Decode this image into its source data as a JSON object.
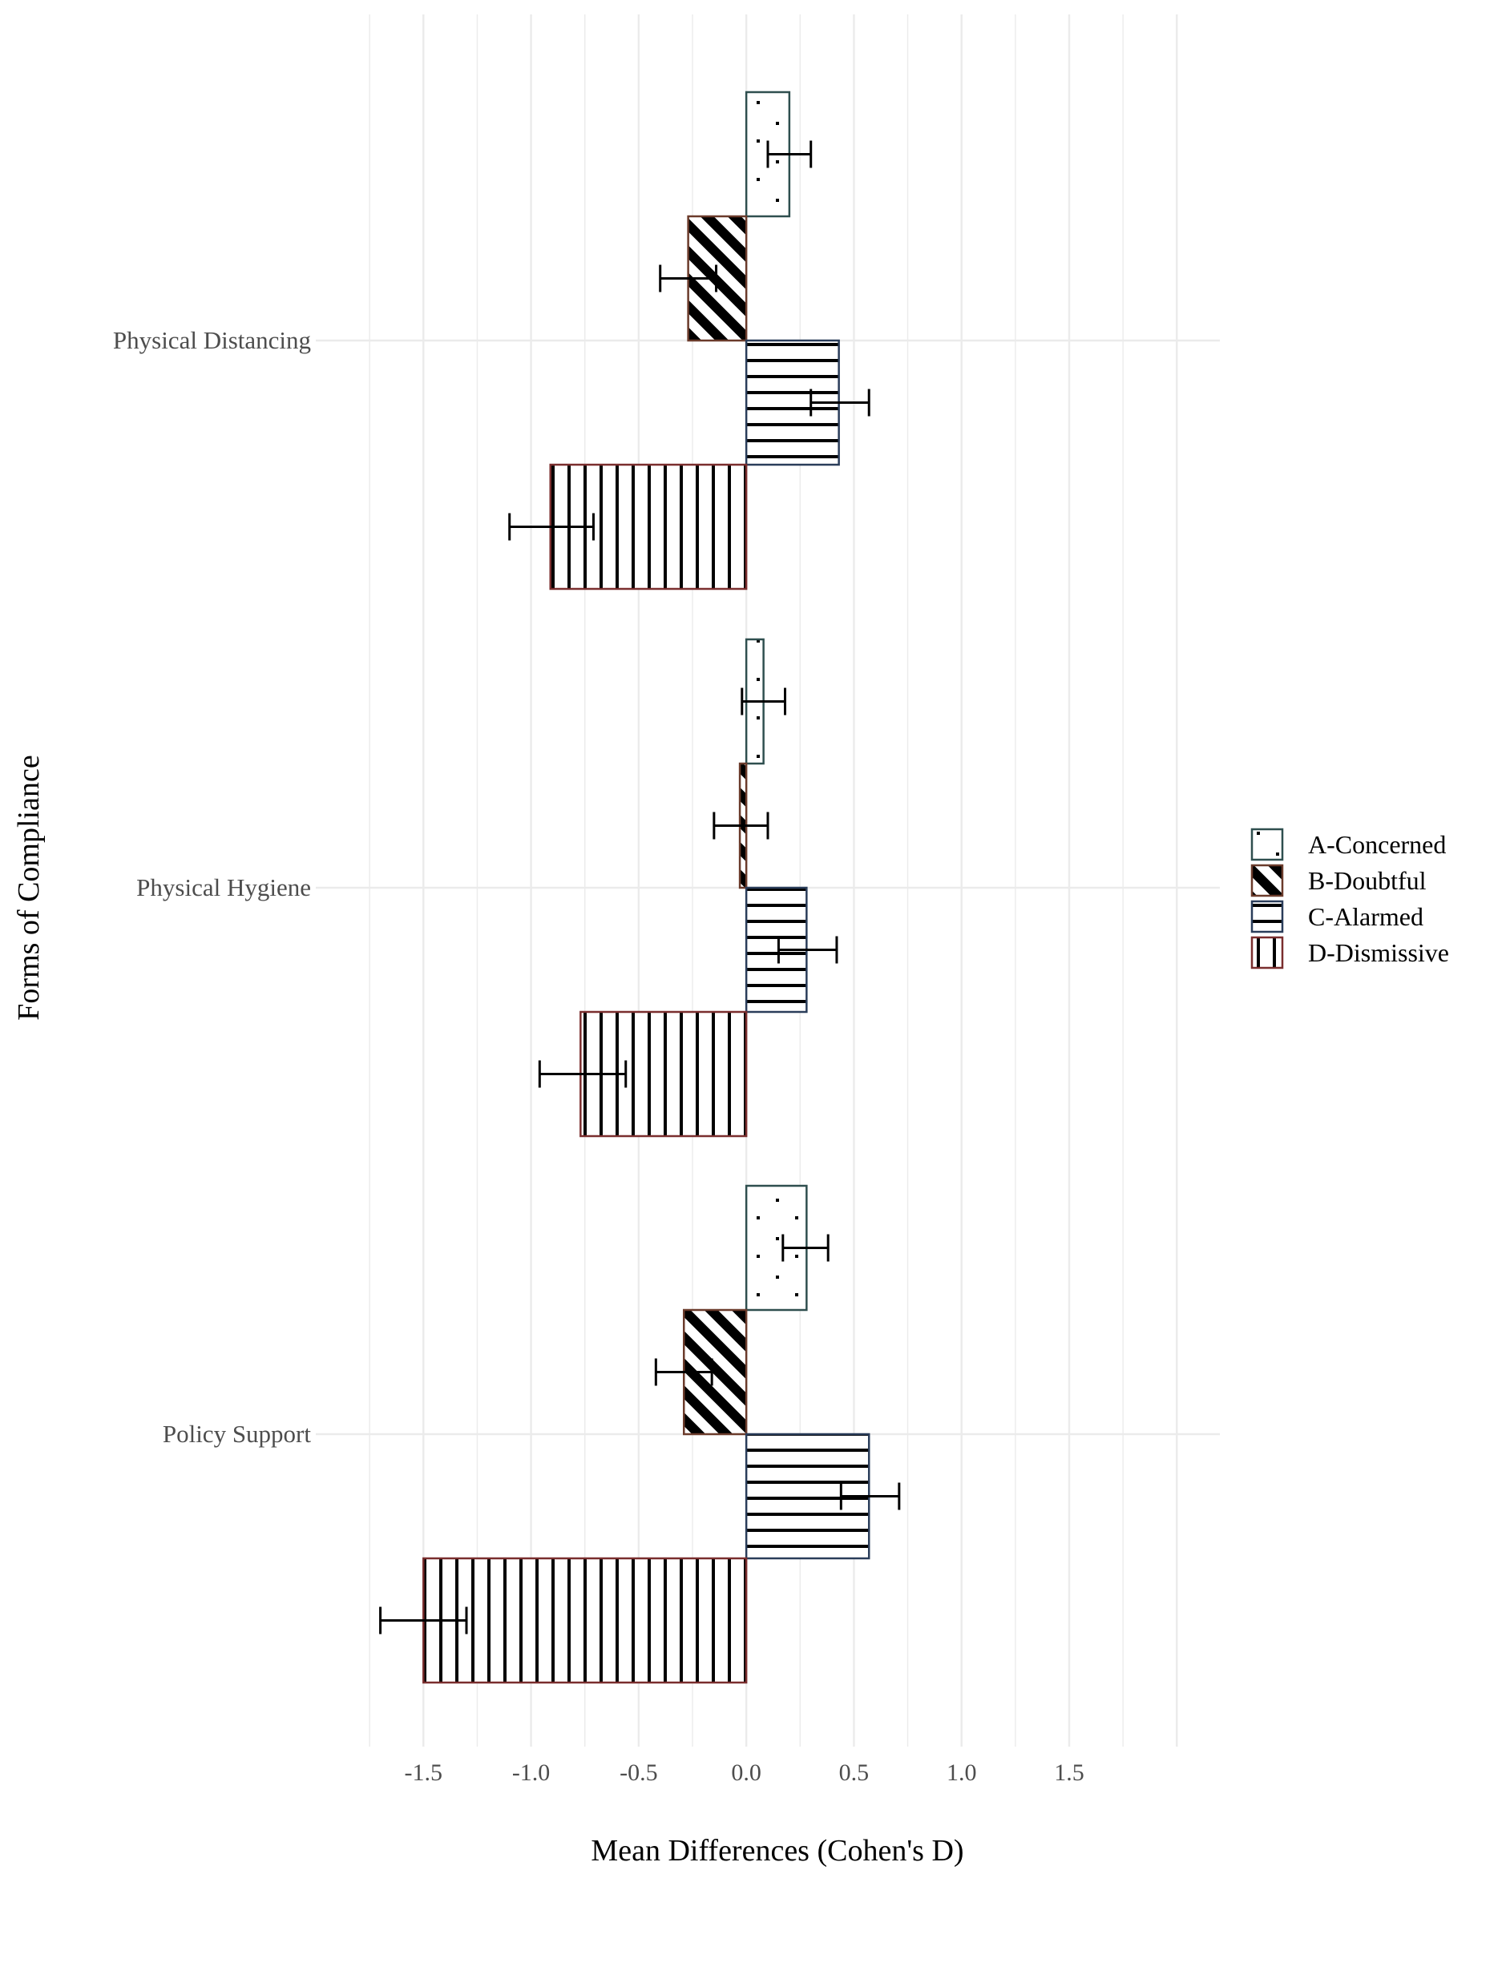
{
  "chart_data": {
    "type": "bar",
    "orientation": "horizontal",
    "xlabel": "Mean Differences (Cohen's D)",
    "ylabel": "Forms of Compliance",
    "xlim": [
      -2.0,
      2.2
    ],
    "xticks": [
      -1.5,
      -1.0,
      -0.5,
      0.0,
      0.5,
      1.0,
      1.5
    ],
    "xtick_labels": [
      "-1.5",
      "-1.0",
      "-0.5",
      "0.0",
      "0.5",
      "1.0",
      "1.5"
    ],
    "grid": true,
    "legend_position": "right",
    "categories": [
      "Physical Distancing",
      "Physical Hygiene",
      "Policy Support"
    ],
    "series": [
      {
        "name": "A-Concerned",
        "pattern": "dots",
        "border_color": "#2f4f4f",
        "values": [
          0.2,
          0.08,
          0.28
        ],
        "error_low": [
          0.1,
          -0.02,
          0.17
        ],
        "error_high": [
          0.3,
          0.18,
          0.38
        ]
      },
      {
        "name": "B-Doubtful",
        "pattern": "diagonal",
        "border_color": "#6b3b2b",
        "values": [
          -0.27,
          -0.03,
          -0.29
        ],
        "error_low": [
          -0.4,
          -0.15,
          -0.42
        ],
        "error_high": [
          -0.14,
          0.1,
          -0.16
        ]
      },
      {
        "name": "C-Alarmed",
        "pattern": "horizontal",
        "border_color": "#2a3d5a",
        "values": [
          0.43,
          0.28,
          0.57
        ],
        "error_low": [
          0.3,
          0.15,
          0.44
        ],
        "error_high": [
          0.57,
          0.42,
          0.71
        ]
      },
      {
        "name": "D-Dismissive",
        "pattern": "vertical",
        "border_color": "#7a2e2e",
        "values": [
          -0.91,
          -0.77,
          -1.5
        ],
        "error_low": [
          -1.1,
          -0.96,
          -1.7
        ],
        "error_high": [
          -0.71,
          -0.56,
          -1.3
        ]
      }
    ]
  }
}
